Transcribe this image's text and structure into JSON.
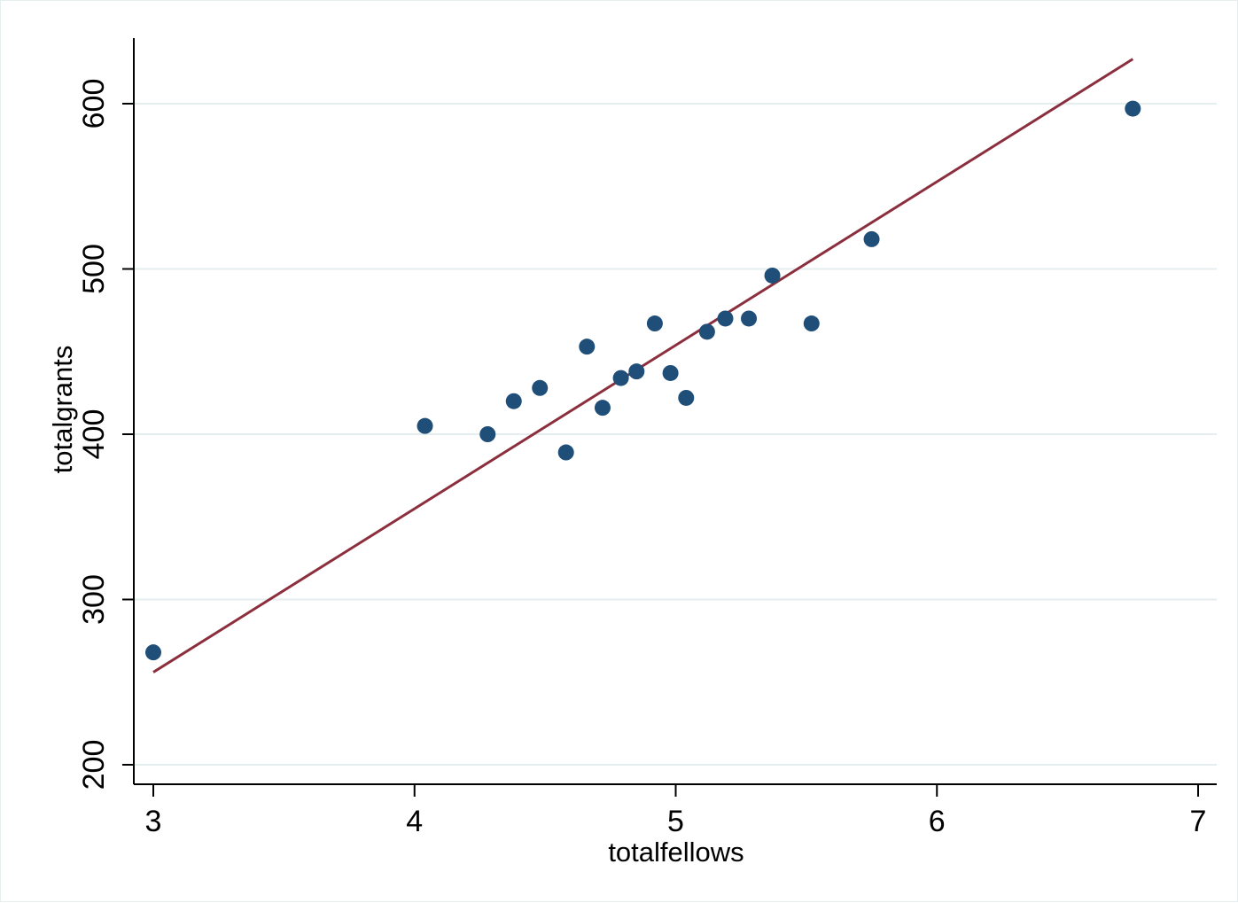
{
  "chart_data": {
    "type": "scatter",
    "title": "",
    "xlabel": "totalfellows",
    "ylabel": "totalgrants",
    "xlim": [
      3,
      7
    ],
    "ylim": [
      200,
      600
    ],
    "x_ticks": [
      3,
      4,
      5,
      6,
      7
    ],
    "y_ticks": [
      200,
      300,
      400,
      500,
      600
    ],
    "grid": "horizontal",
    "legend": "none",
    "colors": {
      "points": "#1f4e79",
      "fit_line": "#8b2e3d",
      "grid": "#e5eeee",
      "axis": "#000000"
    },
    "series": [
      {
        "type": "scatter",
        "points": [
          {
            "x": 3.0,
            "y": 268
          },
          {
            "x": 4.04,
            "y": 405
          },
          {
            "x": 4.28,
            "y": 400
          },
          {
            "x": 4.38,
            "y": 420
          },
          {
            "x": 4.48,
            "y": 428
          },
          {
            "x": 4.58,
            "y": 389
          },
          {
            "x": 4.66,
            "y": 453
          },
          {
            "x": 4.72,
            "y": 416
          },
          {
            "x": 4.79,
            "y": 434
          },
          {
            "x": 4.85,
            "y": 438
          },
          {
            "x": 4.92,
            "y": 467
          },
          {
            "x": 4.98,
            "y": 437
          },
          {
            "x": 5.04,
            "y": 422
          },
          {
            "x": 5.12,
            "y": 462
          },
          {
            "x": 5.19,
            "y": 470
          },
          {
            "x": 5.28,
            "y": 470
          },
          {
            "x": 5.37,
            "y": 496
          },
          {
            "x": 5.52,
            "y": 467
          },
          {
            "x": 5.75,
            "y": 518
          },
          {
            "x": 6.75,
            "y": 597
          }
        ]
      },
      {
        "type": "line",
        "points": [
          {
            "x": 3.0,
            "y": 256
          },
          {
            "x": 6.75,
            "y": 627
          }
        ]
      }
    ]
  }
}
